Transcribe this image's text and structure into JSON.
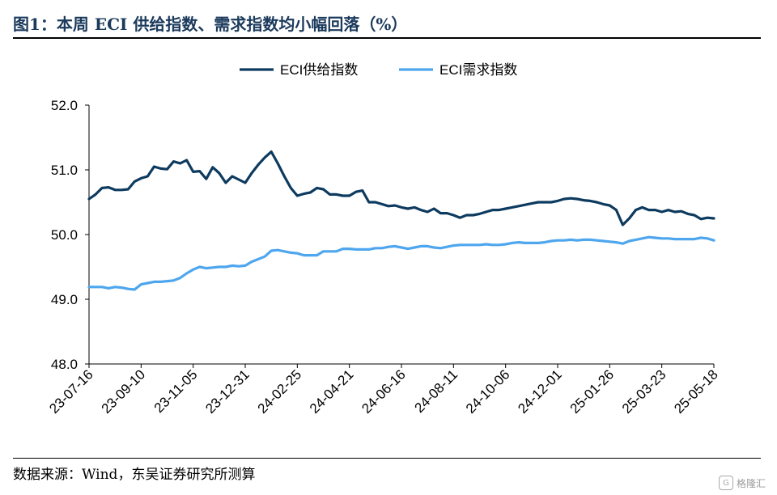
{
  "title": "图1：本周 ECI 供给指数、需求指数均小幅回落（%）",
  "source": "数据来源：Wind，东吴证券研究所测算",
  "watermark": "格隆汇",
  "colors": {
    "supply": "#0d3a5f",
    "demand": "#4ea6ee",
    "title": "#1b3a5c"
  },
  "chart_data": {
    "type": "line",
    "title": "图1：本周 ECI 供给指数、需求指数均小幅回落（%）",
    "xlabel": "",
    "ylabel": "",
    "ylim": [
      48.0,
      52.0
    ],
    "yticks": [
      "48.0",
      "49.0",
      "50.0",
      "51.0",
      "52.0"
    ],
    "ytick_values": [
      48.0,
      49.0,
      50.0,
      51.0,
      52.0
    ],
    "xticks": [
      "23-07-16",
      "23-09-10",
      "23-11-05",
      "23-12-31",
      "24-02-25",
      "24-04-21",
      "24-06-16",
      "24-08-11",
      "24-10-06",
      "24-12-01",
      "25-01-26",
      "25-03-23",
      "25-05-18"
    ],
    "grid": false,
    "legend_position": "top-center",
    "x": [
      "23-07-16",
      "23-07-23",
      "23-07-30",
      "23-08-06",
      "23-08-13",
      "23-08-20",
      "23-08-27",
      "23-09-03",
      "23-09-10",
      "23-09-17",
      "23-09-24",
      "23-10-01",
      "23-10-08",
      "23-10-15",
      "23-10-22",
      "23-10-29",
      "23-11-05",
      "23-11-12",
      "23-11-19",
      "23-11-26",
      "23-12-03",
      "23-12-10",
      "23-12-17",
      "23-12-24",
      "23-12-31",
      "24-01-07",
      "24-01-14",
      "24-01-21",
      "24-01-28",
      "24-02-04",
      "24-02-11",
      "24-02-18",
      "24-02-25",
      "24-03-03",
      "24-03-10",
      "24-03-17",
      "24-03-24",
      "24-03-31",
      "24-04-07",
      "24-04-14",
      "24-04-21",
      "24-04-28",
      "24-05-05",
      "24-05-12",
      "24-05-19",
      "24-05-26",
      "24-06-02",
      "24-06-09",
      "24-06-16",
      "24-06-23",
      "24-06-30",
      "24-07-07",
      "24-07-14",
      "24-07-21",
      "24-07-28",
      "24-08-04",
      "24-08-11",
      "24-08-18",
      "24-08-25",
      "24-09-01",
      "24-09-08",
      "24-09-15",
      "24-09-22",
      "24-09-29",
      "24-10-06",
      "24-10-13",
      "24-10-20",
      "24-10-27",
      "24-11-03",
      "24-11-10",
      "24-11-17",
      "24-11-24",
      "24-12-01",
      "24-12-08",
      "24-12-15",
      "24-12-22",
      "24-12-29",
      "25-01-05",
      "25-01-12",
      "25-01-19",
      "25-01-26",
      "25-02-02",
      "25-02-09",
      "25-02-16",
      "25-02-23",
      "25-03-02",
      "25-03-09",
      "25-03-16",
      "25-03-23",
      "25-03-30",
      "25-04-06",
      "25-04-13",
      "25-04-20",
      "25-04-27",
      "25-05-04",
      "25-05-11",
      "25-05-18"
    ],
    "series": [
      {
        "name": "ECI供给指数",
        "values": [
          50.55,
          50.62,
          50.72,
          50.73,
          50.69,
          50.69,
          50.7,
          50.82,
          50.87,
          50.9,
          51.05,
          51.02,
          51.01,
          51.13,
          51.1,
          51.15,
          50.97,
          50.98,
          50.86,
          51.04,
          50.95,
          50.8,
          50.9,
          50.85,
          50.8,
          50.95,
          51.08,
          51.19,
          51.28,
          51.1,
          50.9,
          50.72,
          50.6,
          50.63,
          50.65,
          50.72,
          50.7,
          50.62,
          50.62,
          50.6,
          50.6,
          50.66,
          50.68,
          50.5,
          50.5,
          50.47,
          50.44,
          50.45,
          50.42,
          50.4,
          50.42,
          50.38,
          50.35,
          50.4,
          50.33,
          50.33,
          50.3,
          50.26,
          50.3,
          50.3,
          50.32,
          50.35,
          50.38,
          50.38,
          50.4,
          50.42,
          50.44,
          50.46,
          50.48,
          50.5,
          50.5,
          50.5,
          50.52,
          50.55,
          50.56,
          50.55,
          50.53,
          50.52,
          50.5,
          50.47,
          50.45,
          50.38,
          50.15,
          50.25,
          50.38,
          50.42,
          50.38,
          50.38,
          50.35,
          50.38,
          50.35,
          50.36,
          50.32,
          50.3,
          50.24,
          50.26,
          50.25
        ]
      },
      {
        "name": "ECI需求指数",
        "values": [
          49.19,
          49.19,
          49.19,
          49.17,
          49.19,
          49.18,
          49.16,
          49.15,
          49.23,
          49.25,
          49.27,
          49.27,
          49.28,
          49.29,
          49.33,
          49.4,
          49.46,
          49.5,
          49.48,
          49.49,
          49.5,
          49.5,
          49.52,
          49.51,
          49.52,
          49.58,
          49.62,
          49.66,
          49.75,
          49.76,
          49.74,
          49.72,
          49.71,
          49.68,
          49.68,
          49.68,
          49.74,
          49.74,
          49.74,
          49.78,
          49.78,
          49.77,
          49.77,
          49.77,
          49.79,
          49.79,
          49.81,
          49.82,
          49.8,
          49.78,
          49.8,
          49.82,
          49.82,
          49.8,
          49.79,
          49.81,
          49.83,
          49.84,
          49.84,
          49.84,
          49.84,
          49.85,
          49.84,
          49.84,
          49.85,
          49.87,
          49.88,
          49.87,
          49.87,
          49.87,
          49.88,
          49.9,
          49.91,
          49.91,
          49.92,
          49.91,
          49.92,
          49.92,
          49.91,
          49.9,
          49.89,
          49.88,
          49.86,
          49.9,
          49.92,
          49.94,
          49.96,
          49.95,
          49.94,
          49.94,
          49.93,
          49.93,
          49.93,
          49.93,
          49.95,
          49.94,
          49.91
        ]
      }
    ]
  }
}
